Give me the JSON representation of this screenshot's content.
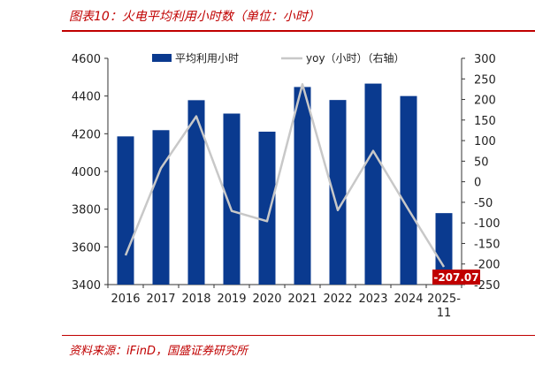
{
  "figure_title": "图表10：火电平均利用小时数（单位：小时）",
  "source": "资料来源：iFinD，国盛证券研究所",
  "colors": {
    "bar": "#0a3a8f",
    "line": "#c8c8c8",
    "accent": "#c00000",
    "callout": "#c00000"
  },
  "chart_data": {
    "type": "bar+line",
    "categories": [
      "2016",
      "2017",
      "2018",
      "2019",
      "2020",
      "2021",
      "2022",
      "2023",
      "2024",
      "2025-11"
    ],
    "series": [
      {
        "name": "平均利用小时",
        "type": "bar",
        "axis": "left",
        "values": [
          4186,
          4219,
          4378,
          4307,
          4211,
          4448,
          4379,
          4466,
          4400,
          3779
        ]
      },
      {
        "name": "yoy（小时）（右轴）",
        "type": "line",
        "axis": "right",
        "values": [
          -179,
          33,
          159,
          -71,
          -96,
          237,
          -69,
          75,
          -68,
          -207.07
        ]
      }
    ],
    "left_axis": {
      "min": 3400,
      "max": 4600,
      "ticks": [
        "3400",
        "3600",
        "3800",
        "4000",
        "4200",
        "4400",
        "4600"
      ]
    },
    "right_axis": {
      "min": -250,
      "max": 300,
      "ticks": [
        "-250",
        "-200",
        "-150",
        "-100",
        "-50",
        "0",
        "50",
        "100",
        "150",
        "200",
        "250",
        "300"
      ]
    },
    "annotation": {
      "text": "-207.07",
      "category": "2025-11",
      "series": "yoy（小时）（右轴）"
    },
    "legend_position": "top",
    "grid": false
  }
}
